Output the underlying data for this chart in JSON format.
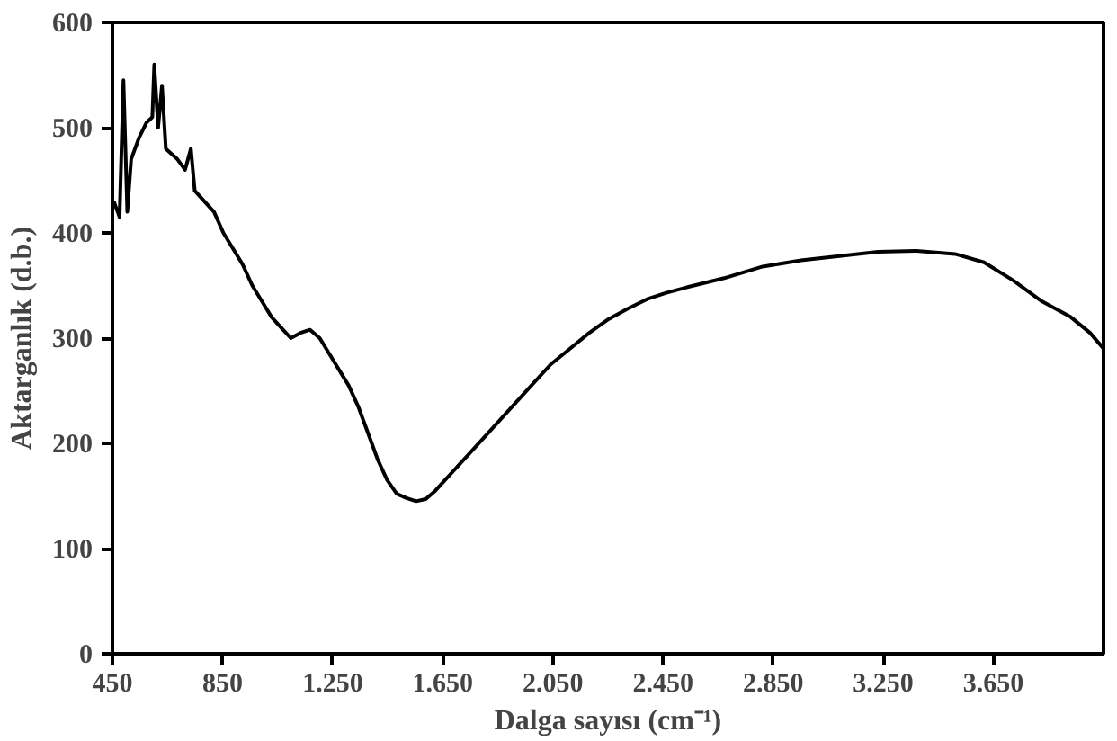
{
  "chart_data": {
    "type": "line",
    "xlabel": "Dalga sayısı (cm⁻¹)",
    "ylabel": "Aktarganlık (d.b.)",
    "x": [
      455,
      476,
      490,
      504,
      518,
      546,
      574,
      595,
      602,
      616,
      630,
      644,
      665,
      686,
      714,
      735,
      749,
      784,
      819,
      853,
      888,
      923,
      958,
      993,
      1028,
      1063,
      1098,
      1133,
      1168,
      1203,
      1238,
      1273,
      1308,
      1343,
      1378,
      1413,
      1448,
      1483,
      1518,
      1553,
      1588,
      1623,
      1658,
      1693,
      1763,
      1833,
      1902,
      1972,
      2042,
      2112,
      2182,
      2252,
      2322,
      2392,
      2462,
      2532,
      2672,
      2812,
      2951,
      3091,
      3231,
      3371,
      3511,
      3616,
      3721,
      3826,
      3931,
      4001,
      4050
    ],
    "series": [
      {
        "color": "#000000",
        "values": [
          430,
          415,
          545,
          420,
          470,
          490,
          505,
          510,
          560,
          500,
          540,
          480,
          475,
          470,
          460,
          480,
          440,
          430,
          420,
          400,
          385,
          370,
          350,
          335,
          320,
          310,
          300,
          305,
          308,
          300,
          285,
          270,
          255,
          235,
          210,
          185,
          165,
          152,
          148,
          145,
          147,
          155,
          165,
          175,
          195,
          215,
          235,
          255,
          275,
          290,
          305,
          318,
          328,
          337,
          343,
          348,
          357,
          368,
          374,
          378,
          382,
          383,
          380,
          372,
          355,
          335,
          320,
          305,
          290
        ]
      }
    ],
    "xlim": [
      450,
      4050
    ],
    "xticks": [
      {
        "value": 450,
        "label": "450"
      },
      {
        "value": 850,
        "label": "850"
      },
      {
        "value": 1250,
        "label": "1.250"
      },
      {
        "value": 1650,
        "label": "1.650"
      },
      {
        "value": 2050,
        "label": "2.050"
      },
      {
        "value": 2450,
        "label": "2.450"
      },
      {
        "value": 2850,
        "label": "2.850"
      },
      {
        "value": 3250,
        "label": "3.250"
      },
      {
        "value": 3650,
        "label": "3.650"
      }
    ],
    "ylim": [
      0,
      600
    ],
    "yticks": [
      0,
      100,
      200,
      300,
      400,
      500,
      600
    ],
    "grid": false,
    "line_style": "solid",
    "marker": "none"
  }
}
